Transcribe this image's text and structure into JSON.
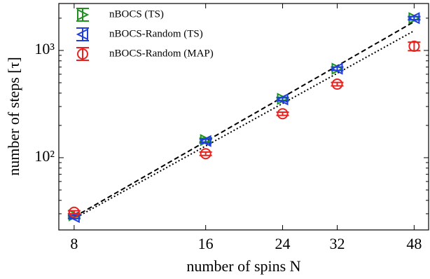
{
  "chart_data": {
    "type": "scatter",
    "xlabel": "number of spins N",
    "ylabel": "number of steps [τ]",
    "xscale": "log",
    "yscale": "log",
    "xlim": [
      7.38,
      51.8
    ],
    "ylim": [
      21.2,
      2740
    ],
    "xticks": [
      8,
      16,
      24,
      32,
      48
    ],
    "yticks": [
      {
        "value": 100,
        "label": "10²"
      },
      {
        "value": 1000,
        "label": "10³"
      }
    ],
    "yminorticks": [
      30,
      40,
      50,
      60,
      70,
      80,
      90,
      200,
      300,
      400,
      500,
      600,
      700,
      800,
      900,
      2000
    ],
    "legend": "upper left",
    "x": [
      8,
      16,
      24,
      32,
      48
    ],
    "series": [
      {
        "name": "nBOCS (TS)",
        "color": "#1f8f1f",
        "marker": "triangle-right",
        "values": [
          29,
          146,
          354,
          676,
          2000
        ],
        "errors": [
          1,
          6,
          12,
          25,
          70
        ]
      },
      {
        "name": "nBOCS-Random (TS)",
        "color": "#1f3fdc",
        "marker": "triangle-left",
        "values": [
          28,
          143,
          350,
          676,
          2000
        ],
        "errors": [
          1,
          6,
          12,
          25,
          70
        ]
      },
      {
        "name": "nBOCS-Random (MAP)",
        "color": "#e8231f",
        "marker": "circle",
        "values": [
          31,
          109,
          257,
          485,
          1095
        ],
        "errors": [
          1,
          4,
          9,
          18,
          100
        ]
      }
    ],
    "fits": [
      {
        "x": [
          8,
          48
        ],
        "values": [
          28,
          1854
        ],
        "dash": "7,4"
      },
      {
        "x": [
          8,
          48
        ],
        "values": [
          27,
          1525
        ],
        "dash": "2,3"
      }
    ]
  }
}
